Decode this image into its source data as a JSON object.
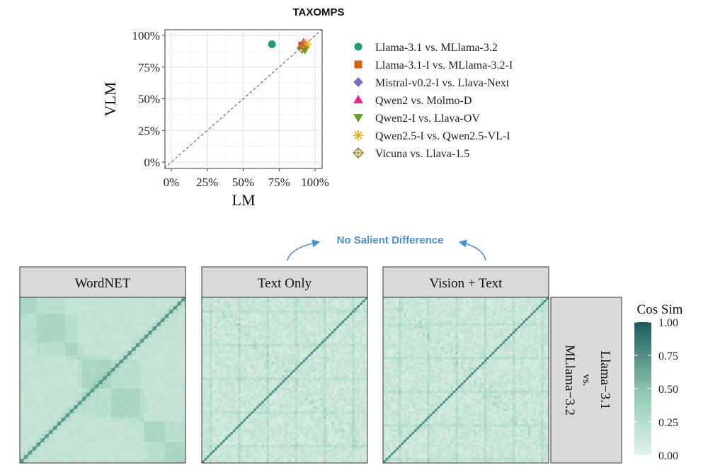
{
  "chart_data": [
    {
      "type": "scatter",
      "title": "TAXOMPS",
      "xlabel": "LM",
      "ylabel": "VLM",
      "xlim": [
        0,
        100
      ],
      "ylim": [
        0,
        100
      ],
      "x_tick_labels": [
        "0%",
        "25%",
        "50%",
        "75%",
        "100%"
      ],
      "y_tick_labels": [
        "0%",
        "25%",
        "50%",
        "75%",
        "100%"
      ],
      "x_ticks": [
        0,
        25,
        50,
        75,
        100
      ],
      "y_ticks": [
        0,
        25,
        50,
        75,
        100
      ],
      "grid": true,
      "reference_line": "y = x (dashed)",
      "legend_position": "right",
      "series": [
        {
          "name": "Llama-3.1 vs. MLlama-3.2",
          "marker": "circle",
          "color": "#1b9e77",
          "points": [
            [
              70,
              93
            ]
          ]
        },
        {
          "name": "Llama-3.1-I vs. MLlama-3.2-I",
          "marker": "square",
          "color": "#d95f02",
          "points": [
            [
              91,
              92
            ]
          ]
        },
        {
          "name": "Mistral-v0.2-I vs. Llava-Next",
          "marker": "diamond",
          "color": "#7570b3",
          "points": [
            [
              92,
              91
            ]
          ]
        },
        {
          "name": "Qwen2 vs. Molmo-D",
          "marker": "triangle-up",
          "color": "#e7298a",
          "points": [
            [
              92,
              94
            ]
          ]
        },
        {
          "name": "Qwen2-I vs. Llava-OV",
          "marker": "triangle-down",
          "color": "#66a61e",
          "points": [
            [
              93,
              89
            ]
          ]
        },
        {
          "name": "Qwen2.5-I vs. Qwen2.5-VL-I",
          "marker": "asterisk",
          "color": "#e6ab02",
          "points": [
            [
              94,
              93
            ]
          ]
        },
        {
          "name": "Vicuna vs. Llava-1.5",
          "marker": "crossed-diamond",
          "color": "#a6761d",
          "points": [
            [
              91,
              90
            ]
          ]
        }
      ]
    },
    {
      "type": "heatmap",
      "facets": [
        "WordNET",
        "Text Only",
        "Vision + Text"
      ],
      "row_strip": [
        "Llama−3.1",
        "vs.",
        "MLlama−3.2"
      ],
      "colorbar": {
        "title": "Cos Sim",
        "range": [
          0,
          1
        ],
        "tick_labels": [
          "1.00",
          "0.75",
          "0.50",
          "0.25",
          "0.00"
        ],
        "ticks": [
          1.0,
          0.75,
          0.5,
          0.25,
          0.0
        ],
        "color_low": "#e3f3ea",
        "color_high": "#1d5c5f"
      }
    }
  ],
  "annotation": {
    "text": "No Salient Difference",
    "color": "#4a8fd8"
  }
}
